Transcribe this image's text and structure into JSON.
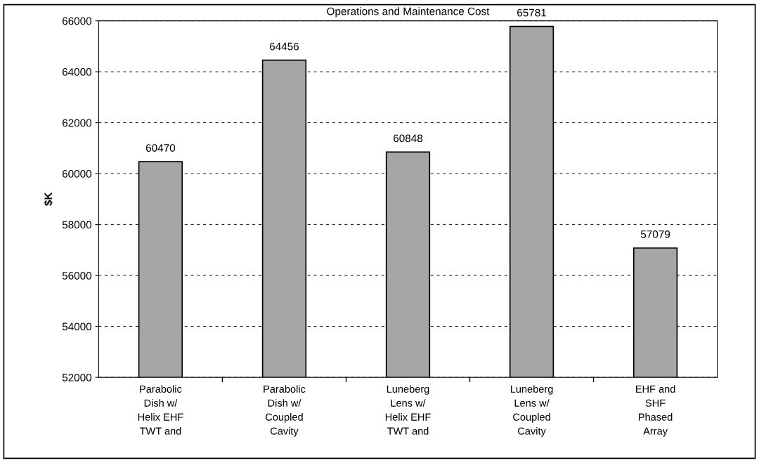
{
  "chart_data": {
    "type": "bar",
    "title": "Operations and Maintenance Cost",
    "ylabel": "$K",
    "categories": [
      "Parabolic\nDish w/\nHelix EHF\nTWT and",
      "Parabolic\nDish w/\nCoupled\nCavity",
      "Luneberg\nLens w/\nHelix EHF\nTWT and",
      "Luneberg\nLens w/\nCoupled\nCavity",
      "EHF and\nSHF\nPhased\nArray"
    ],
    "values": [
      60470,
      64456,
      60848,
      65781,
      57079
    ],
    "color": "#a6a6a6",
    "ylim": [
      52000,
      66000
    ],
    "yticks": [
      52000,
      54000,
      56000,
      58000,
      60000,
      62000,
      64000,
      66000
    ],
    "grid": "y",
    "data_labels": true
  }
}
